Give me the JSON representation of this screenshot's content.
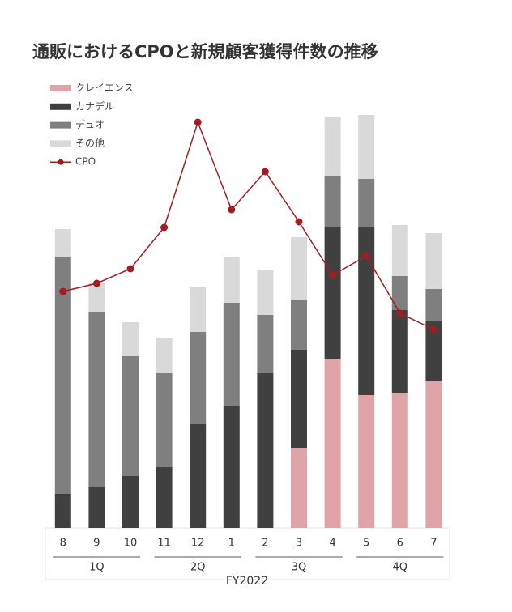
{
  "chart_data": {
    "type": "bar",
    "stacked": true,
    "title": "通販におけるCPOと新規顧客獲得件数の推移",
    "xlabel": "FY2022",
    "categories": [
      "8",
      "9",
      "10",
      "11",
      "12",
      "1",
      "2",
      "3",
      "4",
      "5",
      "6",
      "7"
    ],
    "quarters": [
      "1Q",
      "2Q",
      "3Q",
      "4Q"
    ],
    "ylim": [
      0,
      520
    ],
    "y2lim": [
      0,
      520
    ],
    "series": [
      {
        "name": "クレイエンス",
        "color": "#e0a4a8",
        "values": [
          0,
          0,
          0,
          0,
          0,
          0,
          0,
          98,
          208,
          164,
          166,
          181
        ]
      },
      {
        "name": "カナデル",
        "color": "#404040",
        "values": [
          42,
          50,
          64,
          75,
          128,
          151,
          191,
          122,
          164,
          207,
          103,
          74
        ]
      },
      {
        "name": "デュオ",
        "color": "#7f7f7f",
        "values": [
          293,
          217,
          148,
          116,
          114,
          127,
          72,
          62,
          62,
          60,
          42,
          40
        ]
      },
      {
        "name": "その他",
        "color": "#d9d9d9",
        "values": [
          34,
          35,
          42,
          43,
          55,
          57,
          55,
          77,
          73,
          79,
          63,
          69
        ]
      },
      {
        "name": "CPO",
        "color": "#a31c22",
        "type": "line",
        "axis": "y2",
        "values": [
          292,
          302,
          320,
          371,
          501,
          393,
          440,
          378,
          312,
          336,
          265,
          245
        ]
      }
    ]
  }
}
